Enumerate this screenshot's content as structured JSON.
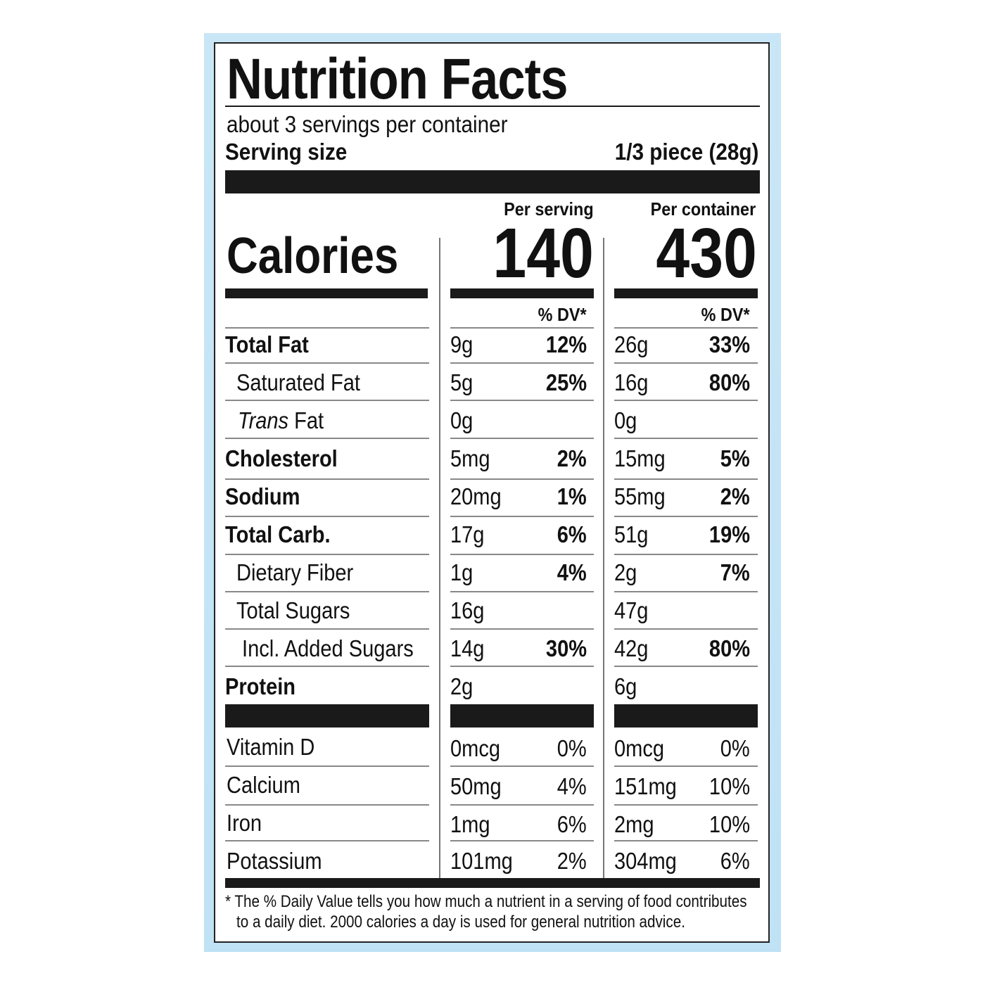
{
  "title": "Nutrition Facts",
  "servings_per_container": "about 3 servings per container",
  "serving_size_label": "Serving size",
  "serving_size_value": "1/3 piece (28g)",
  "col1_header": "Per serving",
  "col2_header": "Per container",
  "calories_label": "Calories",
  "calories_per_serving": "140",
  "calories_per_container": "430",
  "dv_header": "% DV*",
  "nutrients": [
    {
      "label": "Total Fat",
      "s_amt": "9g",
      "s_dv": "12%",
      "c_amt": "26g",
      "c_dv": "33%"
    },
    {
      "label": "Saturated Fat",
      "s_amt": "5g",
      "s_dv": "25%",
      "c_amt": "16g",
      "c_dv": "80%"
    },
    {
      "label_italic": "Trans",
      "label": " Fat",
      "s_amt": "0g",
      "s_dv": "",
      "c_amt": "0g",
      "c_dv": ""
    },
    {
      "label": "Cholesterol",
      "s_amt": "5mg",
      "s_dv": "2%",
      "c_amt": "15mg",
      "c_dv": "5%"
    },
    {
      "label": "Sodium",
      "s_amt": "20mg",
      "s_dv": "1%",
      "c_amt": "55mg",
      "c_dv": "2%"
    },
    {
      "label": "Total Carb.",
      "s_amt": "17g",
      "s_dv": "6%",
      "c_amt": "51g",
      "c_dv": "19%"
    },
    {
      "label": "Dietary Fiber",
      "s_amt": "1g",
      "s_dv": "4%",
      "c_amt": "2g",
      "c_dv": "7%"
    },
    {
      "label": "Total Sugars",
      "s_amt": "16g",
      "s_dv": "",
      "c_amt": "47g",
      "c_dv": ""
    },
    {
      "label": "Incl. Added Sugars",
      "s_amt": "14g",
      "s_dv": "30%",
      "c_amt": "42g",
      "c_dv": "80%"
    },
    {
      "label": "Protein",
      "s_amt": "2g",
      "s_dv": "",
      "c_amt": "6g",
      "c_dv": ""
    }
  ],
  "vitamins": [
    {
      "label": "Vitamin D",
      "s_amt": "0mcg",
      "s_dv": "0%",
      "c_amt": "0mcg",
      "c_dv": "0%"
    },
    {
      "label": "Calcium",
      "s_amt": "50mg",
      "s_dv": "4%",
      "c_amt": "151mg",
      "c_dv": "10%"
    },
    {
      "label": "Iron",
      "s_amt": "1mg",
      "s_dv": "6%",
      "c_amt": "2mg",
      "c_dv": "10%"
    },
    {
      "label": "Potassium",
      "s_amt": "101mg",
      "s_dv": "2%",
      "c_amt": "304mg",
      "c_dv": "6%"
    }
  ],
  "footnote_line1": "* The % Daily Value tells you how much a nutrient in a serving of food contributes",
  "footnote_line2": "to a daily diet. 2000 calories a day is used for general nutrition advice.",
  "colors": {
    "frame": "#c4e4f5",
    "ink": "#111111"
  }
}
